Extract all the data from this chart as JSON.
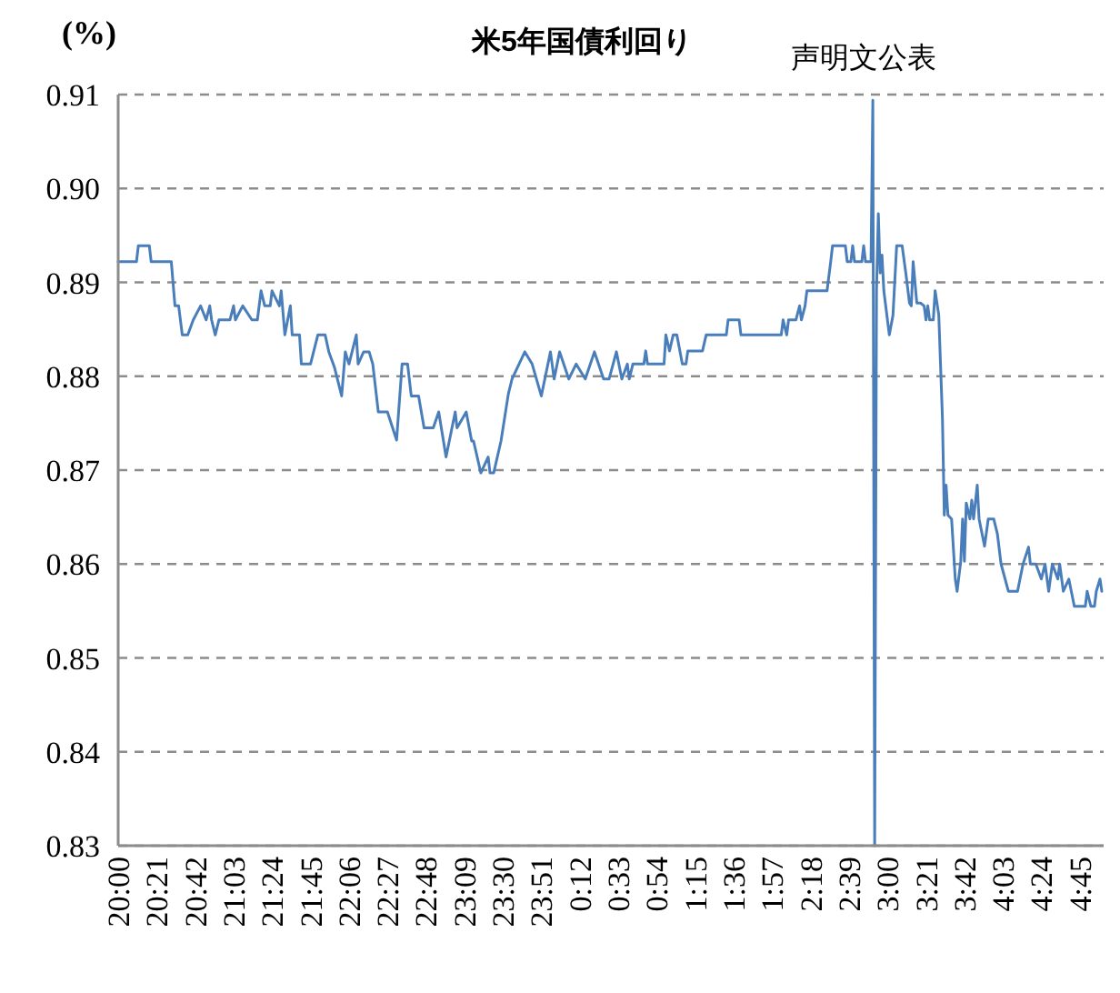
{
  "chart_data": {
    "type": "line",
    "title": "米5年国債利回り",
    "ylabel": "(%)",
    "annotations": [
      {
        "text": "声明文公表",
        "x": "2000-01-02T02:52",
        "y": 0.9094
      }
    ],
    "color": "#4a7ebb",
    "grid": "y",
    "xlim": [
      "2000-01-01T20:00",
      "2000-01-02T04:58"
    ],
    "ylim": [
      0.83,
      0.91
    ],
    "yticks": [
      {
        "value": 0.83,
        "label": "0.83"
      },
      {
        "value": 0.84,
        "label": "0.84"
      },
      {
        "value": 0.85,
        "label": "0.85"
      },
      {
        "value": 0.86,
        "label": "0.86"
      },
      {
        "value": 0.87,
        "label": "0.87"
      },
      {
        "value": 0.88,
        "label": "0.88"
      },
      {
        "value": 0.89,
        "label": "0.89"
      },
      {
        "value": 0.9,
        "label": "0.90"
      },
      {
        "value": 0.91,
        "label": "0.91"
      }
    ],
    "xticks": [
      {
        "value": "2000-01-01T20:00",
        "label": "20:00"
      },
      {
        "value": "2000-01-01T20:21",
        "label": "20:21"
      },
      {
        "value": "2000-01-01T20:42",
        "label": "20:42"
      },
      {
        "value": "2000-01-01T21:03",
        "label": "21:03"
      },
      {
        "value": "2000-01-01T21:24",
        "label": "21:24"
      },
      {
        "value": "2000-01-01T21:45",
        "label": "21:45"
      },
      {
        "value": "2000-01-01T22:06",
        "label": "22:06"
      },
      {
        "value": "2000-01-01T22:27",
        "label": "22:27"
      },
      {
        "value": "2000-01-01T22:48",
        "label": "22:48"
      },
      {
        "value": "2000-01-01T23:09",
        "label": "23:09"
      },
      {
        "value": "2000-01-01T23:30",
        "label": "23:30"
      },
      {
        "value": "2000-01-01T23:51",
        "label": "23:51"
      },
      {
        "value": "2000-01-02T00:12",
        "label": "0:12"
      },
      {
        "value": "2000-01-02T00:33",
        "label": "0:33"
      },
      {
        "value": "2000-01-02T00:54",
        "label": "0:54"
      },
      {
        "value": "2000-01-02T01:15",
        "label": "1:15"
      },
      {
        "value": "2000-01-02T01:36",
        "label": "1:36"
      },
      {
        "value": "2000-01-02T01:57",
        "label": "1:57"
      },
      {
        "value": "2000-01-02T02:18",
        "label": "2:18"
      },
      {
        "value": "2000-01-02T02:39",
        "label": "2:39"
      },
      {
        "value": "2000-01-02T03:00",
        "label": "3:00"
      },
      {
        "value": "2000-01-02T03:21",
        "label": "3:21"
      },
      {
        "value": "2000-01-02T03:42",
        "label": "3:42"
      },
      {
        "value": "2000-01-02T04:03",
        "label": "4:03"
      },
      {
        "value": "2000-01-02T04:24",
        "label": "4:24"
      },
      {
        "value": "2000-01-02T04:45",
        "label": "4:45"
      }
    ],
    "x": [
      "2000-01-01T20:00",
      "2000-01-01T20:10",
      "2000-01-01T20:11",
      "2000-01-01T20:17",
      "2000-01-01T20:18",
      "2000-01-01T20:29",
      "2000-01-01T20:31",
      "2000-01-01T20:33",
      "2000-01-01T20:35",
      "2000-01-01T20:38",
      "2000-01-01T20:41",
      "2000-01-01T20:45",
      "2000-01-01T20:48",
      "2000-01-01T20:50",
      "2000-01-01T20:51",
      "2000-01-01T20:53",
      "2000-01-01T20:55",
      "2000-01-01T21:01",
      "2000-01-01T21:03",
      "2000-01-01T21:04",
      "2000-01-01T21:08",
      "2000-01-01T21:13",
      "2000-01-01T21:16",
      "2000-01-01T21:18",
      "2000-01-01T21:20",
      "2000-01-01T21:23",
      "2000-01-01T21:24",
      "2000-01-01T21:28",
      "2000-01-01T21:29",
      "2000-01-01T21:31",
      "2000-01-01T21:34",
      "2000-01-01T21:35",
      "2000-01-01T21:39",
      "2000-01-01T21:40",
      "2000-01-01T21:45",
      "2000-01-01T21:49",
      "2000-01-01T21:53",
      "2000-01-01T21:55",
      "2000-01-01T21:58",
      "2000-01-01T22:02",
      "2000-01-01T22:04",
      "2000-01-01T22:06",
      "2000-01-01T22:10",
      "2000-01-01T22:11",
      "2000-01-01T22:14",
      "2000-01-01T22:17",
      "2000-01-01T22:19",
      "2000-01-01T22:21",
      "2000-01-01T22:22",
      "2000-01-01T22:27",
      "2000-01-01T22:32",
      "2000-01-01T22:35",
      "2000-01-01T22:38",
      "2000-01-01T22:40",
      "2000-01-01T22:44",
      "2000-01-01T22:47",
      "2000-01-01T22:52",
      "2000-01-01T22:55",
      "2000-01-01T22:59",
      "2000-01-01T23:04",
      "2000-01-01T23:05",
      "2000-01-01T23:10",
      "2000-01-01T23:13",
      "2000-01-01T23:14",
      "2000-01-01T23:18",
      "2000-01-01T23:22",
      "2000-01-01T23:23",
      "2000-01-01T23:25",
      "2000-01-01T23:29",
      "2000-01-01T23:33",
      "2000-01-01T23:35",
      "2000-01-01T23:42",
      "2000-01-01T23:46",
      "2000-01-01T23:51",
      "2000-01-01T23:56",
      "2000-01-01T23:58",
      "2000-01-02T00:01",
      "2000-01-02T00:06",
      "2000-01-02T00:10",
      "2000-01-02T00:15",
      "2000-01-02T00:20",
      "2000-01-02T00:25",
      "2000-01-02T00:28",
      "2000-01-02T00:32",
      "2000-01-02T00:35",
      "2000-01-02T00:38",
      "2000-01-02T00:39",
      "2000-01-02T00:41",
      "2000-01-02T00:47",
      "2000-01-02T00:48",
      "2000-01-02T00:49",
      "2000-01-02T00:58",
      "2000-01-02T00:59",
      "2000-01-02T01:01",
      "2000-01-02T01:03",
      "2000-01-02T01:05",
      "2000-01-02T01:08",
      "2000-01-02T01:10",
      "2000-01-02T01:11",
      "2000-01-02T01:19",
      "2000-01-02T01:21",
      "2000-01-02T01:32",
      "2000-01-02T01:33",
      "2000-01-02T01:39",
      "2000-01-02T01:40",
      "2000-01-02T02:02",
      "2000-01-02T02:03",
      "2000-01-02T02:05",
      "2000-01-02T02:06",
      "2000-01-02T02:10",
      "2000-01-02T02:12",
      "2000-01-02T02:13",
      "2000-01-02T02:15",
      "2000-01-02T02:16",
      "2000-01-02T02:27",
      "2000-01-02T02:29",
      "2000-01-02T02:30",
      "2000-01-02T02:37",
      "2000-01-02T02:38",
      "2000-01-02T02:40",
      "2000-01-02T02:41",
      "2000-01-02T02:42",
      "2000-01-02T02:46",
      "2000-01-02T02:47",
      "2000-01-02T02:48",
      "2000-01-02T02:51",
      "2000-01-02T02:52",
      "2000-01-02T02:53",
      "2000-01-02T02:54",
      "2000-01-02T02:55",
      "2000-01-02T02:56",
      "2000-01-02T02:57",
      "2000-01-02T02:58",
      "2000-01-02T03:01",
      "2000-01-02T03:03",
      "2000-01-02T03:05",
      "2000-01-02T03:08",
      "2000-01-02T03:10",
      "2000-01-02T03:12",
      "2000-01-02T03:13",
      "2000-01-02T03:14",
      "2000-01-02T03:16",
      "2000-01-02T03:18",
      "2000-01-02T03:20",
      "2000-01-02T03:21",
      "2000-01-02T03:22",
      "2000-01-02T03:23",
      "2000-01-02T03:25",
      "2000-01-02T03:26",
      "2000-01-02T03:28",
      "2000-01-02T03:30",
      "2000-01-02T03:31",
      "2000-01-02T03:32",
      "2000-01-02T03:33",
      "2000-01-02T03:35",
      "2000-01-02T03:37",
      "2000-01-02T03:38",
      "2000-01-02T03:40",
      "2000-01-02T03:41",
      "2000-01-02T03:42",
      "2000-01-02T03:43",
      "2000-01-02T03:45",
      "2000-01-02T03:46",
      "2000-01-02T03:47",
      "2000-01-02T03:49",
      "2000-01-02T03:50",
      "2000-01-02T03:53",
      "2000-01-02T03:55",
      "2000-01-02T03:58",
      "2000-01-02T04:00",
      "2000-01-02T04:02",
      "2000-01-02T04:06",
      "2000-01-02T04:11",
      "2000-01-02T04:14",
      "2000-01-02T04:17",
      "2000-01-02T04:18",
      "2000-01-02T04:21",
      "2000-01-02T04:24",
      "2000-01-02T04:26",
      "2000-01-02T04:28",
      "2000-01-02T04:30",
      "2000-01-02T04:33",
      "2000-01-02T04:34",
      "2000-01-02T04:36",
      "2000-01-02T04:39",
      "2000-01-02T04:42",
      "2000-01-02T04:48",
      "2000-01-02T04:49",
      "2000-01-02T04:51",
      "2000-01-02T04:53",
      "2000-01-02T04:54",
      "2000-01-02T04:56",
      "2000-01-02T04:57"
    ],
    "values": [
      0.8922,
      0.8922,
      0.8939,
      0.8939,
      0.8922,
      0.8922,
      0.8875,
      0.8875,
      0.8844,
      0.8844,
      0.886,
      0.8875,
      0.886,
      0.8875,
      0.886,
      0.8844,
      0.886,
      0.886,
      0.8875,
      0.886,
      0.8875,
      0.886,
      0.886,
      0.8891,
      0.8875,
      0.8875,
      0.8891,
      0.8875,
      0.8891,
      0.8844,
      0.8875,
      0.8844,
      0.8844,
      0.8813,
      0.8813,
      0.8844,
      0.8844,
      0.8826,
      0.881,
      0.8779,
      0.8826,
      0.8813,
      0.8844,
      0.8813,
      0.8826,
      0.8826,
      0.8813,
      0.8779,
      0.8762,
      0.8762,
      0.8732,
      0.8813,
      0.8813,
      0.8779,
      0.8779,
      0.8745,
      0.8745,
      0.8762,
      0.8714,
      0.8762,
      0.8745,
      0.8762,
      0.8731,
      0.8731,
      0.8697,
      0.8714,
      0.8697,
      0.8697,
      0.8731,
      0.8781,
      0.8797,
      0.8826,
      0.8813,
      0.8779,
      0.8826,
      0.8797,
      0.8826,
      0.8797,
      0.8813,
      0.8797,
      0.8826,
      0.8797,
      0.8797,
      0.8826,
      0.8797,
      0.8813,
      0.8797,
      0.8813,
      0.8813,
      0.8827,
      0.8813,
      0.8813,
      0.8844,
      0.8827,
      0.8844,
      0.8844,
      0.8813,
      0.8813,
      0.8827,
      0.8827,
      0.8844,
      0.8844,
      0.886,
      0.886,
      0.8844,
      0.8844,
      0.886,
      0.8844,
      0.886,
      0.886,
      0.8875,
      0.886,
      0.8875,
      0.8891,
      0.8891,
      0.8922,
      0.8939,
      0.8939,
      0.8922,
      0.8922,
      0.8939,
      0.8922,
      0.8922,
      0.8939,
      0.8922,
      0.8922,
      0.9094,
      0.83,
      0.8891,
      0.8973,
      0.891,
      0.8929,
      0.8891,
      0.8844,
      0.8865,
      0.8939,
      0.8939,
      0.891,
      0.8878,
      0.8875,
      0.8922,
      0.8878,
      0.8878,
      0.8875,
      0.886,
      0.8875,
      0.886,
      0.886,
      0.8891,
      0.8865,
      0.8755,
      0.8652,
      0.8684,
      0.8652,
      0.8648,
      0.8584,
      0.8571,
      0.8603,
      0.8648,
      0.8603,
      0.8665,
      0.8648,
      0.8668,
      0.8648,
      0.8684,
      0.8648,
      0.8619,
      0.8648,
      0.8648,
      0.8632,
      0.86,
      0.8571,
      0.8571,
      0.86,
      0.8618,
      0.86,
      0.86,
      0.8584,
      0.86,
      0.8571,
      0.86,
      0.8584,
      0.86,
      0.8571,
      0.8584,
      0.8555,
      0.8555,
      0.8571,
      0.8555,
      0.8555,
      0.8571,
      0.8584,
      0.8571
    ]
  }
}
